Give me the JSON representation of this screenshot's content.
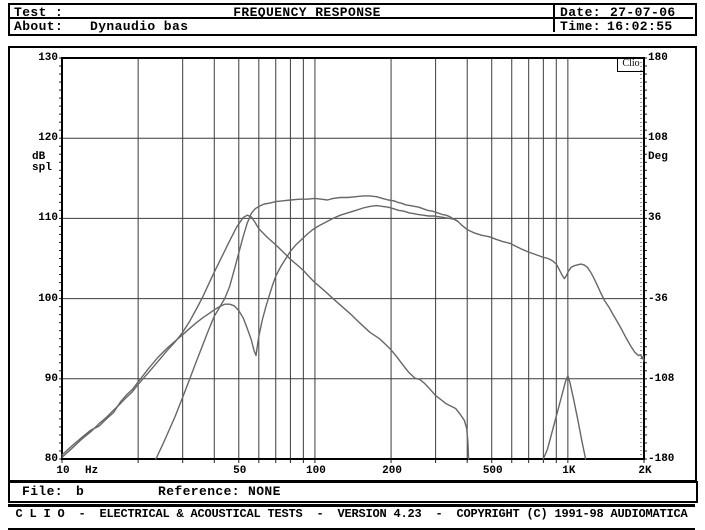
{
  "header": {
    "test_label": "Test :",
    "title": "FREQUENCY RESPONSE",
    "date_label": "Date:",
    "date_value": "27-07-06",
    "about_label": "About:",
    "about_value": "Dynaudio bas",
    "time_label": "Time:",
    "time_value": "16:02:55"
  },
  "file_bar": {
    "file_label": "File:",
    "file_value": "b",
    "reference_label": "Reference:",
    "reference_value": "NONE"
  },
  "footer": {
    "text": "C L I O  -  ELECTRICAL & ACOUSTICAL TESTS  -  VERSION 4.23  -  COPYRIGHT (C) 1991-98 AUDIOMATICA"
  },
  "watermark": "Clio",
  "colors": {
    "frame": "#000000",
    "grid": "#3c3c3c",
    "trace": "#676767",
    "background": "#ffffff"
  },
  "chart_data": {
    "type": "line",
    "title": "FREQUENCY RESPONSE",
    "x_axis": {
      "scale": "log",
      "min": 10,
      "max": 2000,
      "unit": "Hz",
      "ticks": [
        {
          "v": 10,
          "label": "10"
        },
        {
          "v": 50,
          "label": "50"
        },
        {
          "v": 100,
          "label": "100"
        },
        {
          "v": 200,
          "label": "200"
        },
        {
          "v": 500,
          "label": "500"
        },
        {
          "v": 1000,
          "label": "1K"
        },
        {
          "v": 2000,
          "label": "2K"
        }
      ],
      "gridlines": [
        20,
        30,
        40,
        50,
        60,
        70,
        80,
        90,
        100,
        200,
        300,
        400,
        500,
        600,
        700,
        800,
        900,
        1000
      ]
    },
    "y_left": {
      "title_line1": "dB",
      "title_line2": "spl",
      "min": 80,
      "max": 130,
      "ticks": [
        130,
        120,
        110,
        100,
        90,
        80
      ],
      "gridlines": [
        120,
        110,
        100,
        90
      ]
    },
    "y_right": {
      "title": "Deg",
      "min": -180,
      "max": 180,
      "ticks": [
        180,
        108,
        36,
        -36,
        -108,
        -180
      ]
    },
    "legend": "none",
    "series": [
      {
        "name": "response-peak53hz-with-lf-tail",
        "points": [
          [
            10,
            80.2
          ],
          [
            11,
            81.4
          ],
          [
            12,
            82.5
          ],
          [
            13,
            83.4
          ],
          [
            14,
            84.4
          ],
          [
            15,
            85.2
          ],
          [
            16,
            86.1
          ],
          [
            17,
            86.9
          ],
          [
            18,
            87.7
          ],
          [
            19,
            88.4
          ],
          [
            20,
            89.3
          ],
          [
            22,
            90.8
          ],
          [
            24,
            92.2
          ],
          [
            26,
            93.5
          ],
          [
            28,
            94.6
          ],
          [
            30,
            95.8
          ],
          [
            32,
            97.2
          ],
          [
            34,
            98.7
          ],
          [
            36,
            100.2
          ],
          [
            38,
            101.8
          ],
          [
            40,
            103.3
          ],
          [
            43,
            105.3
          ],
          [
            46,
            107.2
          ],
          [
            49,
            108.9
          ],
          [
            52,
            110.1
          ],
          [
            54,
            110.4
          ],
          [
            56,
            110.2
          ],
          [
            58,
            109.5
          ],
          [
            60,
            108.7
          ],
          [
            65,
            107.6
          ],
          [
            70,
            106.7
          ],
          [
            75,
            105.8
          ],
          [
            80,
            104.9
          ],
          [
            85,
            104.2
          ],
          [
            90,
            103.5
          ],
          [
            95,
            102.7
          ],
          [
            100,
            102.0
          ],
          [
            108,
            101.1
          ],
          [
            117,
            100.1
          ],
          [
            127,
            99.1
          ],
          [
            138,
            98.1
          ],
          [
            150,
            97.0
          ],
          [
            165,
            95.8
          ],
          [
            180,
            95.0
          ],
          [
            190,
            94.3
          ],
          [
            200,
            93.6
          ],
          [
            210,
            92.8
          ],
          [
            222,
            91.8
          ],
          [
            235,
            90.8
          ],
          [
            248,
            90.1
          ],
          [
            260,
            89.9
          ],
          [
            272,
            89.4
          ],
          [
            285,
            88.7
          ],
          [
            300,
            87.9
          ],
          [
            315,
            87.4
          ],
          [
            330,
            86.9
          ],
          [
            345,
            86.6
          ],
          [
            360,
            86.3
          ],
          [
            375,
            85.6
          ],
          [
            390,
            84.8
          ],
          [
            398,
            83.8
          ],
          [
            402,
            82.3
          ],
          [
            405,
            80.0
          ]
        ]
      },
      {
        "name": "steep-riser-upper-plateau-merged-tail",
        "points": [
          [
            23.5,
            80.0
          ],
          [
            25,
            81.8
          ],
          [
            26.5,
            83.6
          ],
          [
            28,
            85.3
          ],
          [
            30,
            87.7
          ],
          [
            32,
            90.0
          ],
          [
            34,
            92.2
          ],
          [
            36,
            94.2
          ],
          [
            38,
            96.1
          ],
          [
            40,
            97.8
          ],
          [
            42,
            98.9
          ],
          [
            44,
            100.0
          ],
          [
            46,
            101.5
          ],
          [
            48,
            103.6
          ],
          [
            50,
            105.7
          ],
          [
            52,
            107.7
          ],
          [
            54,
            109.4
          ],
          [
            56,
            110.6
          ],
          [
            58,
            111.2
          ],
          [
            60,
            111.5
          ],
          [
            63,
            111.8
          ],
          [
            66,
            111.9
          ],
          [
            70,
            112.1
          ],
          [
            75,
            112.2
          ],
          [
            80,
            112.3
          ],
          [
            87,
            112.4
          ],
          [
            93,
            112.4
          ],
          [
            100,
            112.5
          ],
          [
            106,
            112.4
          ],
          [
            112,
            112.3
          ],
          [
            118,
            112.5
          ],
          [
            126,
            112.6
          ],
          [
            135,
            112.6
          ],
          [
            145,
            112.7
          ],
          [
            155,
            112.8
          ],
          [
            165,
            112.8
          ],
          [
            175,
            112.7
          ],
          [
            185,
            112.5
          ],
          [
            195,
            112.3
          ],
          [
            205,
            112.2
          ],
          [
            213,
            112.0
          ],
          [
            220,
            111.9
          ],
          [
            228,
            111.7
          ],
          [
            238,
            111.6
          ],
          [
            248,
            111.5
          ],
          [
            258,
            111.4
          ],
          [
            268,
            111.2
          ],
          [
            280,
            111.0
          ],
          [
            292,
            110.9
          ],
          [
            305,
            110.7
          ],
          [
            318,
            110.5
          ],
          [
            330,
            110.4
          ],
          [
            342,
            110.2
          ],
          [
            355,
            109.9
          ],
          [
            368,
            109.6
          ],
          [
            382,
            109.1
          ],
          [
            400,
            108.6
          ],
          [
            425,
            108.2
          ],
          [
            455,
            107.9
          ],
          [
            490,
            107.7
          ],
          [
            520,
            107.4
          ],
          [
            555,
            107.1
          ],
          [
            590,
            106.9
          ],
          [
            625,
            106.5
          ],
          [
            665,
            106.1
          ],
          [
            700,
            105.8
          ],
          [
            745,
            105.5
          ],
          [
            790,
            105.2
          ],
          [
            835,
            105.0
          ],
          [
            870,
            104.7
          ],
          [
            900,
            104.3
          ],
          [
            925,
            103.6
          ],
          [
            950,
            102.9
          ],
          [
            968,
            102.5
          ],
          [
            985,
            102.8
          ],
          [
            1005,
            103.4
          ],
          [
            1030,
            103.9
          ],
          [
            1060,
            104.1
          ],
          [
            1090,
            104.2
          ],
          [
            1125,
            104.3
          ],
          [
            1160,
            104.2
          ],
          [
            1195,
            103.9
          ],
          [
            1230,
            103.3
          ],
          [
            1270,
            102.5
          ],
          [
            1310,
            101.6
          ],
          [
            1350,
            100.7
          ],
          [
            1400,
            99.7
          ],
          [
            1455,
            98.9
          ],
          [
            1510,
            98.0
          ],
          [
            1570,
            97.1
          ],
          [
            1635,
            96.1
          ],
          [
            1700,
            95.1
          ],
          [
            1770,
            94.1
          ],
          [
            1840,
            93.3
          ],
          [
            1900,
            92.9
          ],
          [
            1940,
            93.0
          ],
          [
            1965,
            92.5
          ],
          [
            1985,
            92.8
          ],
          [
            2000,
            92.2
          ]
        ]
      },
      {
        "name": "port-hump-notch-lower-plateau",
        "points": [
          [
            10,
            80.5
          ],
          [
            11,
            81.7
          ],
          [
            12,
            82.7
          ],
          [
            13,
            83.6
          ],
          [
            14,
            84.1
          ],
          [
            15,
            85.0
          ],
          [
            16,
            85.8
          ],
          [
            17,
            87.1
          ],
          [
            18,
            88.0
          ],
          [
            19,
            88.7
          ],
          [
            20,
            89.6
          ],
          [
            22,
            91.3
          ],
          [
            24,
            92.7
          ],
          [
            26,
            93.8
          ],
          [
            28,
            94.7
          ],
          [
            30,
            95.5
          ],
          [
            32,
            96.3
          ],
          [
            34,
            97.0
          ],
          [
            36,
            97.6
          ],
          [
            38,
            98.1
          ],
          [
            40,
            98.6
          ],
          [
            42,
            99.0
          ],
          [
            44,
            99.3
          ],
          [
            46,
            99.3
          ],
          [
            48,
            99.1
          ],
          [
            50,
            98.5
          ],
          [
            52,
            97.6
          ],
          [
            54,
            96.3
          ],
          [
            56,
            94.9
          ],
          [
            57.5,
            93.5
          ],
          [
            58.5,
            92.9
          ],
          [
            60,
            95.3
          ],
          [
            62,
            97.4
          ],
          [
            64,
            99.0
          ],
          [
            66,
            100.4
          ],
          [
            68,
            101.7
          ],
          [
            70,
            102.8
          ],
          [
            73,
            103.9
          ],
          [
            76,
            104.8
          ],
          [
            80,
            105.9
          ],
          [
            84,
            106.7
          ],
          [
            88,
            107.3
          ],
          [
            93,
            108.0
          ],
          [
            98,
            108.6
          ],
          [
            104,
            109.1
          ],
          [
            110,
            109.5
          ],
          [
            118,
            110.0
          ],
          [
            126,
            110.4
          ],
          [
            135,
            110.7
          ],
          [
            145,
            111.0
          ],
          [
            155,
            111.3
          ],
          [
            165,
            111.5
          ],
          [
            175,
            111.6
          ],
          [
            185,
            111.5
          ],
          [
            195,
            111.4
          ],
          [
            205,
            111.2
          ],
          [
            215,
            111.0
          ],
          [
            225,
            110.9
          ],
          [
            235,
            110.7
          ],
          [
            245,
            110.6
          ],
          [
            255,
            110.5
          ],
          [
            268,
            110.4
          ],
          [
            282,
            110.3
          ],
          [
            296,
            110.3
          ],
          [
            310,
            110.2
          ],
          [
            325,
            110.1
          ],
          [
            340,
            110.0
          ],
          [
            355,
            109.9
          ],
          [
            365,
            109.7
          ]
        ]
      },
      {
        "name": "port-pipe-resonance-spike-1khz",
        "points": [
          [
            800,
            79.9
          ],
          [
            830,
            81.2
          ],
          [
            870,
            83.6
          ],
          [
            910,
            85.9
          ],
          [
            950,
            88.1
          ],
          [
            980,
            89.7
          ],
          [
            1000,
            90.4
          ],
          [
            1020,
            89.5
          ],
          [
            1055,
            87.4
          ],
          [
            1095,
            84.9
          ],
          [
            1135,
            82.3
          ],
          [
            1175,
            80.0
          ]
        ]
      }
    ]
  }
}
